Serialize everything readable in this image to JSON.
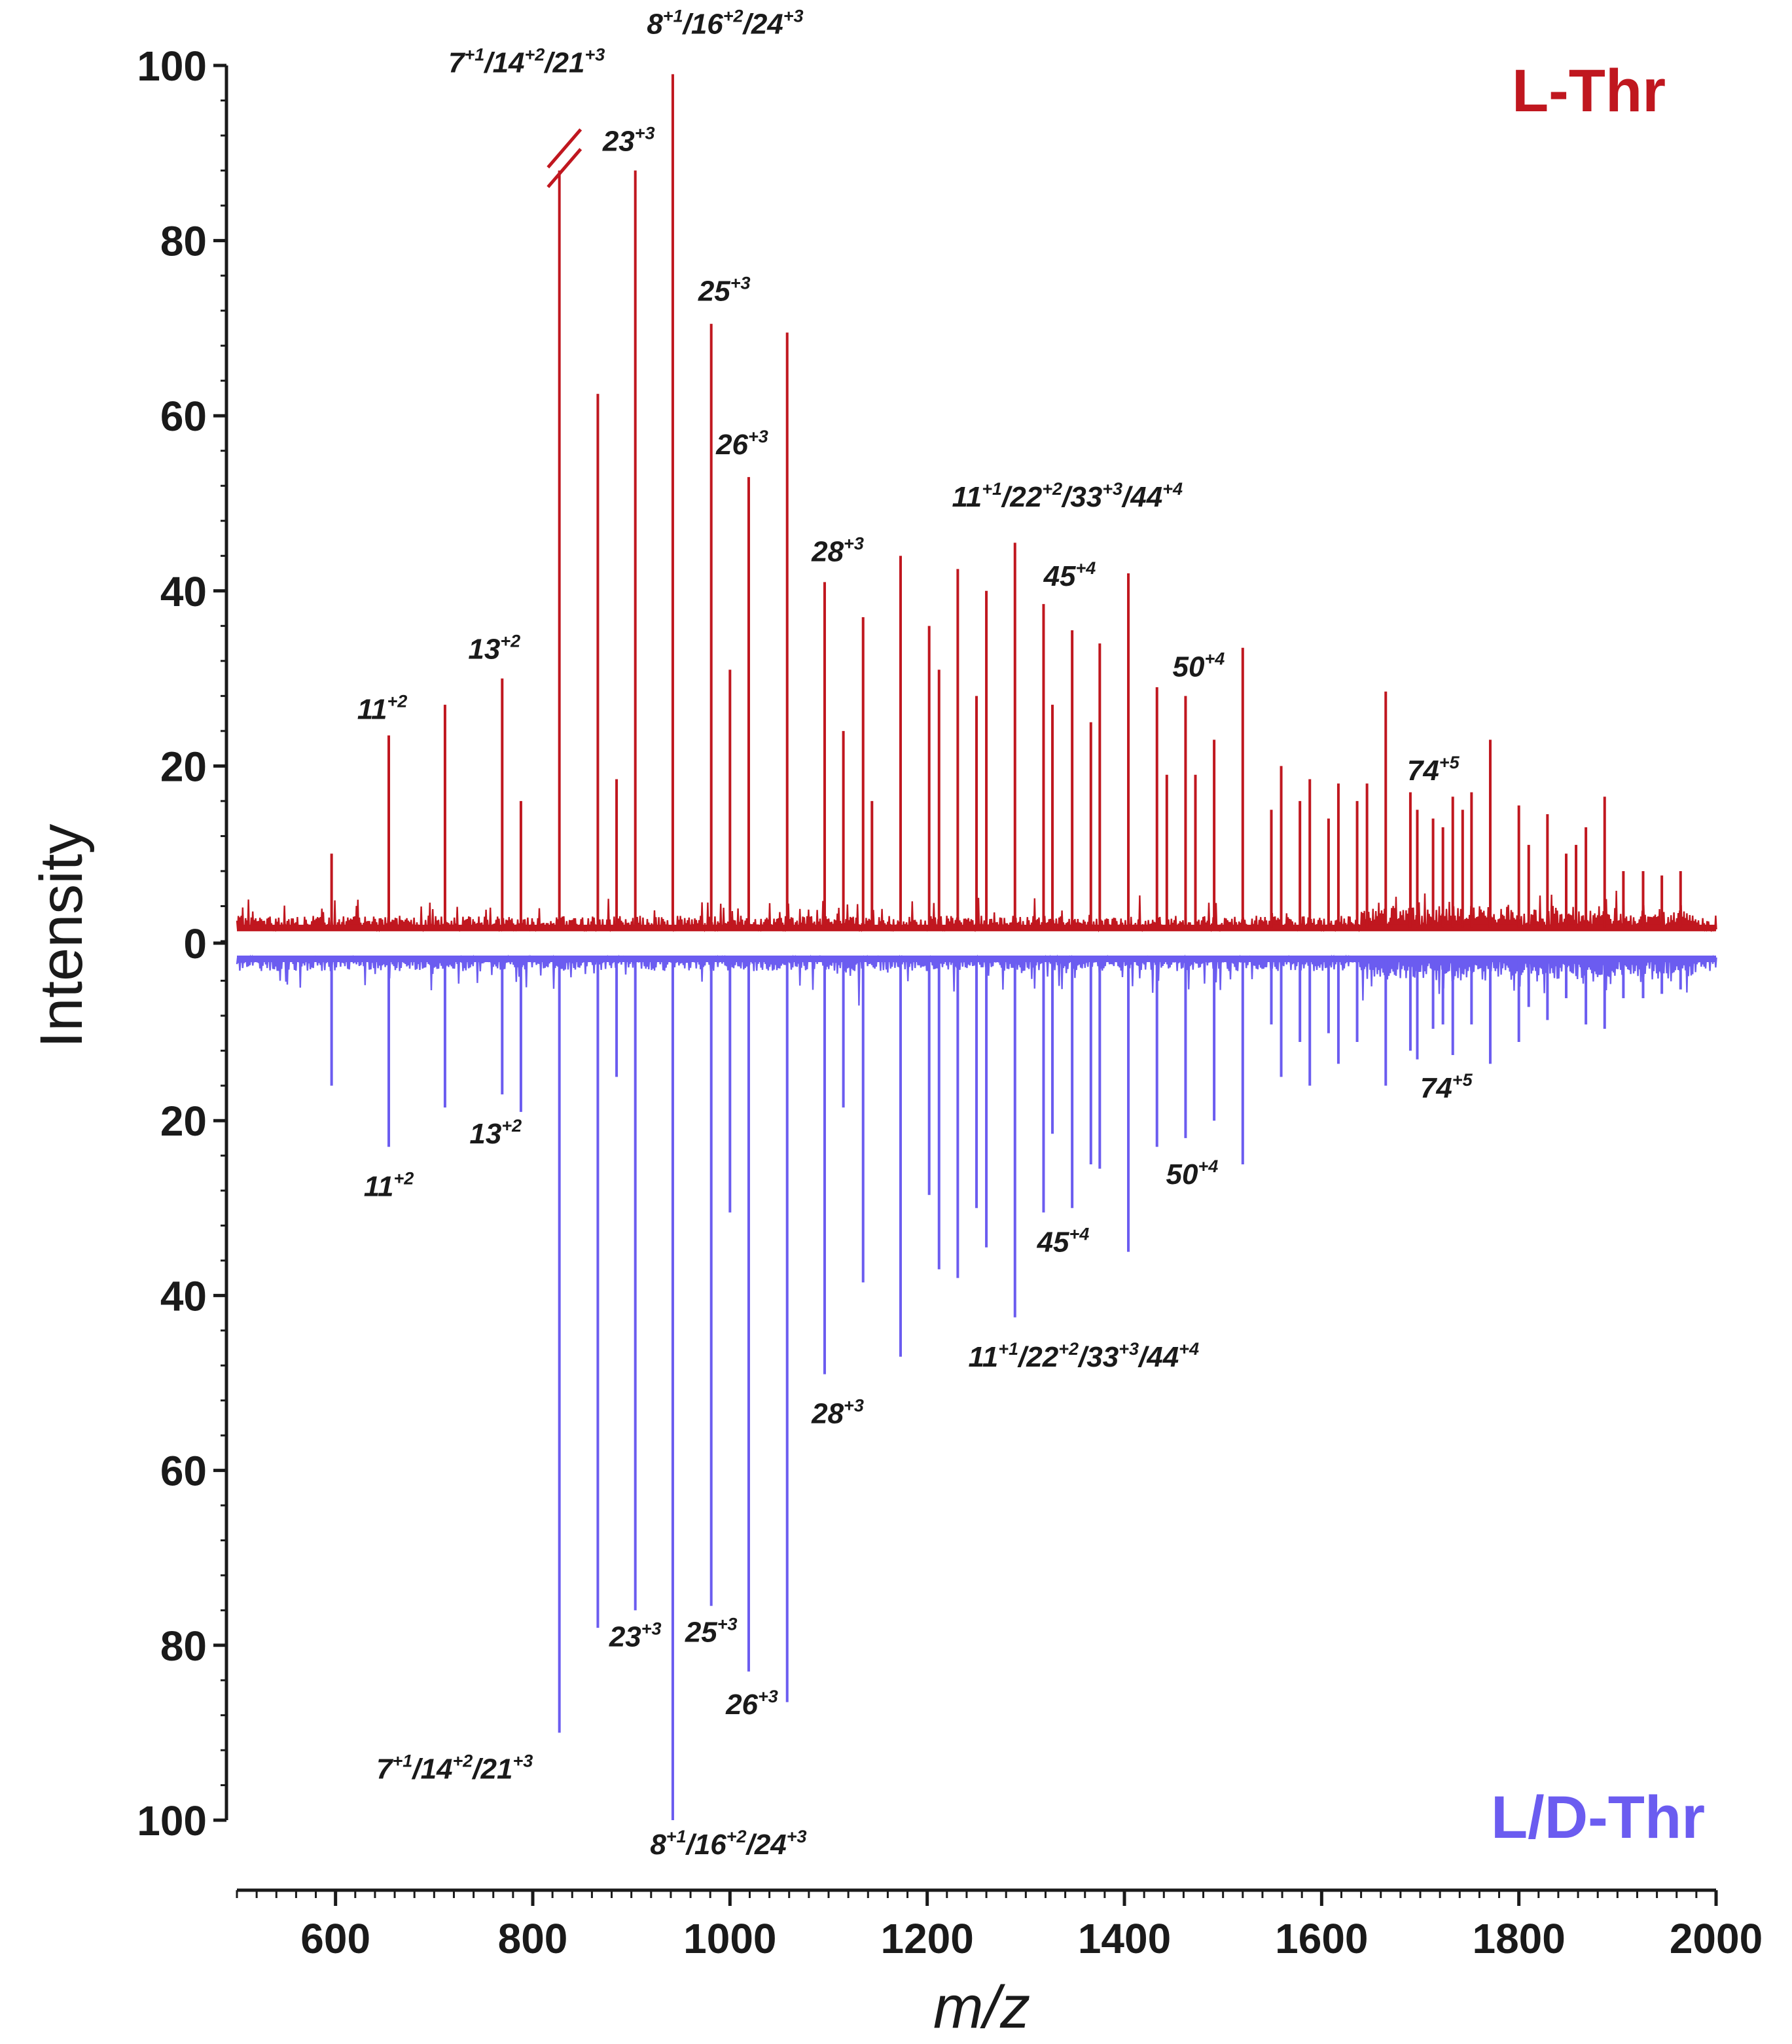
{
  "chart_data": {
    "type": "line",
    "subtype": "mirrored mass spectrum",
    "title": "",
    "xlabel": "m/z",
    "ylabel": "Intensity",
    "xlim": [
      500,
      2000
    ],
    "xticks": [
      600,
      800,
      1000,
      1200,
      1400,
      1600,
      1800,
      2000
    ],
    "x_minor_tick_step": 20,
    "ylim_top": [
      0,
      100
    ],
    "ylim_bottom": [
      0,
      100
    ],
    "yticks": [
      0,
      20,
      40,
      60,
      80,
      100
    ],
    "grid": false,
    "axis_break": {
      "series": "L-Thr",
      "mz": 838,
      "at": 90
    },
    "series": [
      {
        "name": "L-Thr",
        "direction": "up",
        "color": "#c0171f",
        "baseline": 1.5,
        "peaks": [
          {
            "mz": 596,
            "intensity": 10
          },
          {
            "mz": 654,
            "intensity": 23.5
          },
          {
            "mz": 711,
            "intensity": 27
          },
          {
            "mz": 769,
            "intensity": 30
          },
          {
            "mz": 788,
            "intensity": 16
          },
          {
            "mz": 827,
            "intensity": 88
          },
          {
            "mz": 866,
            "intensity": 62.5
          },
          {
            "mz": 885,
            "intensity": 18.5
          },
          {
            "mz": 904,
            "intensity": 88
          },
          {
            "mz": 942,
            "intensity": 99
          },
          {
            "mz": 981,
            "intensity": 70.5
          },
          {
            "mz": 1000,
            "intensity": 31
          },
          {
            "mz": 1019,
            "intensity": 53
          },
          {
            "mz": 1058,
            "intensity": 69.5
          },
          {
            "mz": 1096,
            "intensity": 41
          },
          {
            "mz": 1115,
            "intensity": 24
          },
          {
            "mz": 1135,
            "intensity": 37
          },
          {
            "mz": 1144,
            "intensity": 16
          },
          {
            "mz": 1173,
            "intensity": 44
          },
          {
            "mz": 1202,
            "intensity": 36
          },
          {
            "mz": 1212,
            "intensity": 31
          },
          {
            "mz": 1231,
            "intensity": 42.5
          },
          {
            "mz": 1250,
            "intensity": 28
          },
          {
            "mz": 1260,
            "intensity": 40
          },
          {
            "mz": 1289,
            "intensity": 45.5
          },
          {
            "mz": 1318,
            "intensity": 38.5
          },
          {
            "mz": 1327,
            "intensity": 27
          },
          {
            "mz": 1347,
            "intensity": 35.5
          },
          {
            "mz": 1366,
            "intensity": 25
          },
          {
            "mz": 1375,
            "intensity": 34
          },
          {
            "mz": 1404,
            "intensity": 42
          },
          {
            "mz": 1433,
            "intensity": 29
          },
          {
            "mz": 1443,
            "intensity": 19
          },
          {
            "mz": 1462,
            "intensity": 28
          },
          {
            "mz": 1472,
            "intensity": 19
          },
          {
            "mz": 1491,
            "intensity": 23
          },
          {
            "mz": 1520,
            "intensity": 33.5
          },
          {
            "mz": 1549,
            "intensity": 15
          },
          {
            "mz": 1559,
            "intensity": 20
          },
          {
            "mz": 1578,
            "intensity": 16
          },
          {
            "mz": 1588,
            "intensity": 18.5
          },
          {
            "mz": 1607,
            "intensity": 14
          },
          {
            "mz": 1617,
            "intensity": 18
          },
          {
            "mz": 1636,
            "intensity": 16
          },
          {
            "mz": 1646,
            "intensity": 18
          },
          {
            "mz": 1665,
            "intensity": 28.5
          },
          {
            "mz": 1690,
            "intensity": 17
          },
          {
            "mz": 1697,
            "intensity": 15
          },
          {
            "mz": 1713,
            "intensity": 14
          },
          {
            "mz": 1723,
            "intensity": 13
          },
          {
            "mz": 1733,
            "intensity": 16.5
          },
          {
            "mz": 1743,
            "intensity": 15
          },
          {
            "mz": 1752,
            "intensity": 17
          },
          {
            "mz": 1771,
            "intensity": 23
          },
          {
            "mz": 1800,
            "intensity": 15.5
          },
          {
            "mz": 1810,
            "intensity": 11
          },
          {
            "mz": 1829,
            "intensity": 14.5
          },
          {
            "mz": 1848,
            "intensity": 10
          },
          {
            "mz": 1858,
            "intensity": 11
          },
          {
            "mz": 1868,
            "intensity": 13
          },
          {
            "mz": 1887,
            "intensity": 16.5
          },
          {
            "mz": 1906,
            "intensity": 8
          },
          {
            "mz": 1926,
            "intensity": 8
          },
          {
            "mz": 1945,
            "intensity": 7.5
          },
          {
            "mz": 1964,
            "intensity": 8
          }
        ]
      },
      {
        "name": "L/D-Thr",
        "direction": "down",
        "color": "#6b5cf0",
        "baseline": 1.5,
        "peaks": [
          {
            "mz": 596,
            "intensity": 16
          },
          {
            "mz": 654,
            "intensity": 23
          },
          {
            "mz": 711,
            "intensity": 18.5
          },
          {
            "mz": 769,
            "intensity": 17
          },
          {
            "mz": 788,
            "intensity": 19
          },
          {
            "mz": 827,
            "intensity": 90
          },
          {
            "mz": 866,
            "intensity": 78
          },
          {
            "mz": 885,
            "intensity": 15
          },
          {
            "mz": 904,
            "intensity": 76
          },
          {
            "mz": 942,
            "intensity": 100
          },
          {
            "mz": 981,
            "intensity": 75.5
          },
          {
            "mz": 1000,
            "intensity": 30.5
          },
          {
            "mz": 1019,
            "intensity": 83
          },
          {
            "mz": 1058,
            "intensity": 86.5
          },
          {
            "mz": 1096,
            "intensity": 49
          },
          {
            "mz": 1115,
            "intensity": 18.5
          },
          {
            "mz": 1135,
            "intensity": 38.5
          },
          {
            "mz": 1173,
            "intensity": 47
          },
          {
            "mz": 1202,
            "intensity": 28.5
          },
          {
            "mz": 1212,
            "intensity": 37
          },
          {
            "mz": 1231,
            "intensity": 38
          },
          {
            "mz": 1250,
            "intensity": 30
          },
          {
            "mz": 1260,
            "intensity": 34.5
          },
          {
            "mz": 1289,
            "intensity": 42.5
          },
          {
            "mz": 1318,
            "intensity": 30.5
          },
          {
            "mz": 1327,
            "intensity": 21.5
          },
          {
            "mz": 1347,
            "intensity": 30
          },
          {
            "mz": 1366,
            "intensity": 25
          },
          {
            "mz": 1375,
            "intensity": 25.5
          },
          {
            "mz": 1404,
            "intensity": 35
          },
          {
            "mz": 1433,
            "intensity": 23
          },
          {
            "mz": 1462,
            "intensity": 22
          },
          {
            "mz": 1491,
            "intensity": 20
          },
          {
            "mz": 1520,
            "intensity": 25
          },
          {
            "mz": 1549,
            "intensity": 9
          },
          {
            "mz": 1559,
            "intensity": 15
          },
          {
            "mz": 1578,
            "intensity": 11
          },
          {
            "mz": 1588,
            "intensity": 16
          },
          {
            "mz": 1607,
            "intensity": 10
          },
          {
            "mz": 1617,
            "intensity": 13.5
          },
          {
            "mz": 1636,
            "intensity": 11
          },
          {
            "mz": 1665,
            "intensity": 16
          },
          {
            "mz": 1690,
            "intensity": 12
          },
          {
            "mz": 1697,
            "intensity": 13
          },
          {
            "mz": 1713,
            "intensity": 9.5
          },
          {
            "mz": 1723,
            "intensity": 9
          },
          {
            "mz": 1733,
            "intensity": 12.5
          },
          {
            "mz": 1752,
            "intensity": 9
          },
          {
            "mz": 1771,
            "intensity": 13.5
          },
          {
            "mz": 1800,
            "intensity": 11
          },
          {
            "mz": 1810,
            "intensity": 7
          },
          {
            "mz": 1829,
            "intensity": 8.5
          },
          {
            "mz": 1848,
            "intensity": 6
          },
          {
            "mz": 1868,
            "intensity": 9
          },
          {
            "mz": 1887,
            "intensity": 9.5
          },
          {
            "mz": 1906,
            "intensity": 6
          },
          {
            "mz": 1926,
            "intensity": 6
          },
          {
            "mz": 1945,
            "intensity": 5.5
          },
          {
            "mz": 1964,
            "intensity": 5
          }
        ]
      }
    ],
    "annotations": [
      {
        "series": "L-Thr",
        "base": "7",
        "charges": [
          "+1",
          "+2",
          "+3"
        ],
        "ions": [
          "7",
          "14",
          "21"
        ],
        "mz": 827,
        "value": 88
      },
      {
        "series": "L-Thr",
        "base": "8",
        "charges": [
          "+1",
          "+2",
          "+3"
        ],
        "ions": [
          "8",
          "16",
          "24"
        ],
        "mz": 942,
        "value": 99
      },
      {
        "series": "L-Thr",
        "ions": [
          "23"
        ],
        "charges": [
          "+3"
        ],
        "mz": 904,
        "value": 88
      },
      {
        "series": "L-Thr",
        "ions": [
          "25"
        ],
        "charges": [
          "+3"
        ],
        "mz": 981,
        "value": 70.5
      },
      {
        "series": "L-Thr",
        "ions": [
          "26"
        ],
        "charges": [
          "+3"
        ],
        "mz": 1019,
        "value": 53
      },
      {
        "series": "L-Thr",
        "ions": [
          "28"
        ],
        "charges": [
          "+3"
        ],
        "mz": 1096,
        "value": 41
      },
      {
        "series": "L-Thr",
        "ions": [
          "11",
          "22",
          "33",
          "44"
        ],
        "charges": [
          "+1",
          "+2",
          "+3",
          "+4"
        ],
        "mz": 1289,
        "value": 45.5
      },
      {
        "series": "L-Thr",
        "ions": [
          "45"
        ],
        "charges": [
          "+4"
        ],
        "mz": 1318,
        "value": 38.5
      },
      {
        "series": "L-Thr",
        "ions": [
          "50"
        ],
        "charges": [
          "+4"
        ],
        "mz": 1462,
        "value": 28
      },
      {
        "series": "L-Thr",
        "ions": [
          "13"
        ],
        "charges": [
          "+2"
        ],
        "mz": 769,
        "value": 30
      },
      {
        "series": "L-Thr",
        "ions": [
          "11"
        ],
        "charges": [
          "+2"
        ],
        "mz": 654,
        "value": 23.5
      },
      {
        "series": "L-Thr",
        "ions": [
          "74"
        ],
        "charges": [
          "+5"
        ],
        "mz": 1733,
        "value": 16.5
      },
      {
        "series": "L/D-Thr",
        "ions": [
          "11"
        ],
        "charges": [
          "+2"
        ],
        "mz": 654,
        "value": 23
      },
      {
        "series": "L/D-Thr",
        "ions": [
          "13"
        ],
        "charges": [
          "+2"
        ],
        "mz": 769,
        "value": 17
      },
      {
        "series": "L/D-Thr",
        "ions": [
          "7",
          "14",
          "21"
        ],
        "charges": [
          "+1",
          "+2",
          "+3"
        ],
        "mz": 827,
        "value": 90
      },
      {
        "series": "L/D-Thr",
        "ions": [
          "23"
        ],
        "charges": [
          "+3"
        ],
        "mz": 904,
        "value": 76
      },
      {
        "series": "L/D-Thr",
        "ions": [
          "25"
        ],
        "charges": [
          "+3"
        ],
        "mz": 981,
        "value": 75.5
      },
      {
        "series": "L/D-Thr",
        "ions": [
          "26"
        ],
        "charges": [
          "+3"
        ],
        "mz": 1019,
        "value": 83
      },
      {
        "series": "L/D-Thr",
        "ions": [
          "8",
          "16",
          "24"
        ],
        "charges": [
          "+1",
          "+2",
          "+3"
        ],
        "mz": 942,
        "value": 100
      },
      {
        "series": "L/D-Thr",
        "ions": [
          "28"
        ],
        "charges": [
          "+3"
        ],
        "mz": 1096,
        "value": 49
      },
      {
        "series": "L/D-Thr",
        "ions": [
          "11",
          "22",
          "33",
          "44"
        ],
        "charges": [
          "+1",
          "+2",
          "+3",
          "+4"
        ],
        "mz": 1289,
        "value": 42.5
      },
      {
        "series": "L/D-Thr",
        "ions": [
          "45"
        ],
        "charges": [
          "+4"
        ],
        "mz": 1318,
        "value": 30.5
      },
      {
        "series": "L/D-Thr",
        "ions": [
          "50"
        ],
        "charges": [
          "+4"
        ],
        "mz": 1462,
        "value": 22
      },
      {
        "series": "L/D-Thr",
        "ions": [
          "74"
        ],
        "charges": [
          "+5"
        ],
        "mz": 1733,
        "value": 12.5
      }
    ]
  }
}
